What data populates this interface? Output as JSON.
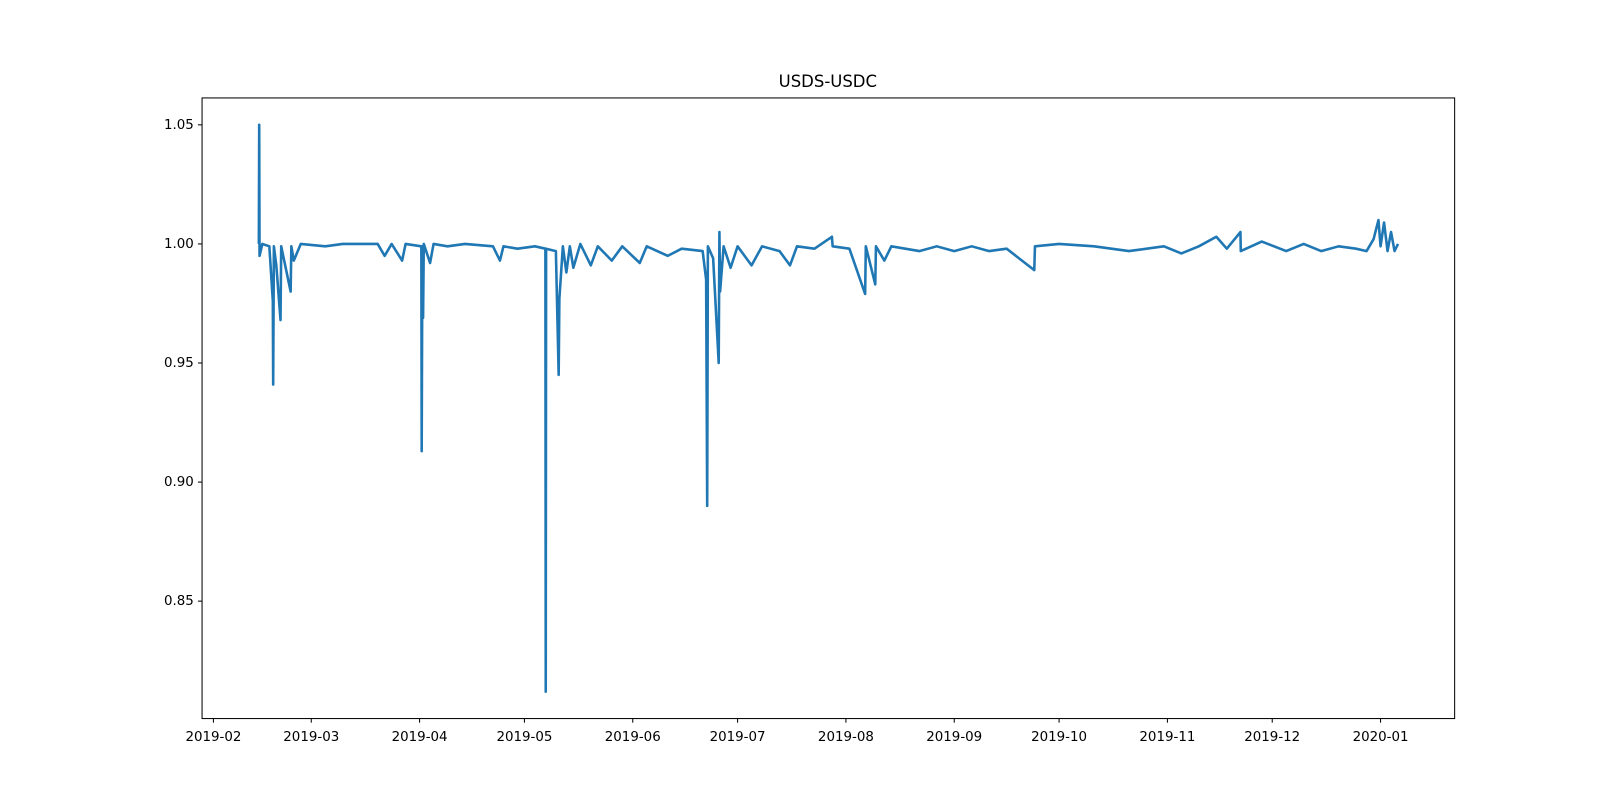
{
  "chart_data": {
    "type": "line",
    "title": "USDS-USDC",
    "color": "#1f77b4",
    "x": [
      17941.0,
      17941.1,
      17941.2,
      17942,
      17944,
      17945,
      17945.1,
      17945.3,
      17946,
      17947.2,
      17947.4,
      17950.1,
      17950.3,
      17951,
      17953,
      17960,
      17965,
      17975,
      17977,
      17979,
      17982,
      17983,
      17987.5,
      17987.6,
      17987.8,
      17988,
      17988.2,
      17990,
      17991,
      17995,
      18000,
      18008,
      18010,
      18011,
      18015,
      18020,
      18023,
      18023.1,
      18023.2,
      18026,
      18026.8,
      18027,
      18028,
      18029,
      18030,
      18031,
      18033,
      18036,
      18038,
      18042,
      18045,
      18050,
      18052,
      18058,
      18062,
      18068,
      18069,
      18069.3,
      18069.5,
      18071,
      18072.6,
      18072.8,
      18073,
      18074,
      18076,
      18078,
      18082,
      18085,
      18090,
      18093,
      18095,
      18100,
      18105,
      18105.2,
      18110,
      18114.5,
      18114.7,
      18117.4,
      18117.6,
      18120,
      18122,
      18130,
      18135,
      18140,
      18145,
      18150,
      18155,
      18162.9,
      18163.1,
      18170,
      18180,
      18190,
      18200,
      18205,
      18210,
      18215,
      18218,
      18221.9,
      18222,
      18228,
      18235,
      18240,
      18245,
      18250,
      18255,
      18258,
      18260,
      18261.4,
      18262,
      18263,
      18264,
      18265,
      18266,
      18267
    ],
    "values": [
      1.0,
      1.05,
      0.995,
      1.0,
      0.999,
      0.976,
      0.941,
      0.999,
      0.991,
      0.968,
      0.999,
      0.98,
      0.999,
      0.993,
      1.0,
      0.999,
      1.0,
      1.0,
      0.995,
      1.0,
      0.993,
      1.0,
      0.999,
      0.913,
      0.999,
      0.969,
      1.0,
      0.992,
      1.0,
      0.999,
      1.0,
      0.999,
      0.993,
      0.999,
      0.998,
      0.999,
      0.998,
      0.812,
      0.998,
      0.997,
      0.945,
      0.977,
      0.999,
      0.988,
      0.999,
      0.99,
      1.0,
      0.991,
      0.999,
      0.993,
      0.999,
      0.992,
      0.999,
      0.995,
      0.998,
      0.997,
      0.985,
      0.89,
      0.999,
      0.994,
      0.95,
      1.005,
      0.98,
      0.999,
      0.99,
      0.999,
      0.991,
      0.999,
      0.997,
      0.991,
      0.999,
      0.998,
      1.003,
      0.999,
      0.998,
      0.979,
      0.999,
      0.983,
      0.999,
      0.993,
      0.999,
      0.997,
      0.999,
      0.997,
      0.999,
      0.997,
      0.998,
      0.989,
      0.999,
      1.0,
      0.999,
      0.997,
      0.999,
      0.996,
      0.999,
      1.003,
      0.998,
      1.005,
      0.997,
      1.001,
      0.997,
      1.0,
      0.997,
      0.999,
      0.998,
      0.997,
      1.002,
      1.01,
      0.999,
      1.009,
      0.997,
      1.005,
      0.997,
      1.0
    ],
    "xlim": [
      17924.75,
      18283.2
    ],
    "xticks": [
      {
        "value": 17928,
        "label": "2019-02"
      },
      {
        "value": 17956,
        "label": "2019-03"
      },
      {
        "value": 17987,
        "label": "2019-04"
      },
      {
        "value": 18017,
        "label": "2019-05"
      },
      {
        "value": 18048,
        "label": "2019-06"
      },
      {
        "value": 18078,
        "label": "2019-07"
      },
      {
        "value": 18109,
        "label": "2019-08"
      },
      {
        "value": 18140,
        "label": "2019-09"
      },
      {
        "value": 18170,
        "label": "2019-10"
      },
      {
        "value": 18201,
        "label": "2019-11"
      },
      {
        "value": 18231,
        "label": "2019-12"
      },
      {
        "value": 18262,
        "label": "2020-01"
      }
    ],
    "ylim": [
      0.8007,
      1.0613
    ],
    "yticks": [
      0.85,
      {
        "value": 0.9,
        "label": "0.90"
      },
      0.95,
      {
        "value": 1.0,
        "label": "1.00"
      },
      1.05
    ],
    "grid": false
  }
}
